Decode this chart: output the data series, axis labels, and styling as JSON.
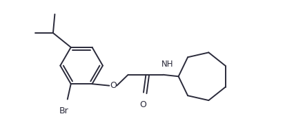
{
  "line_color": "#2a2a3a",
  "bg_color": "#ffffff",
  "line_width": 1.4,
  "figsize": [
    4.13,
    1.98
  ],
  "dpi": 100,
  "xlim": [
    0,
    8.26
  ],
  "ylim": [
    0,
    3.96
  ]
}
